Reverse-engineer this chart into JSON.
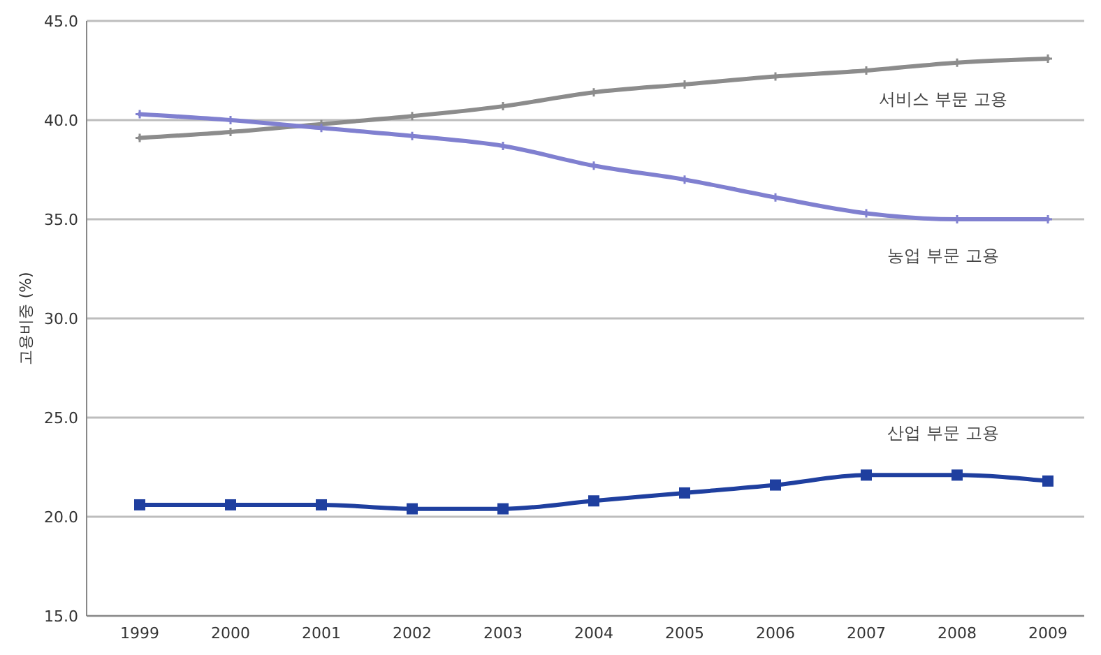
{
  "chart_data": {
    "type": "line",
    "ylabel": "고용비중 (%)",
    "categories": [
      "1999",
      "2000",
      "2001",
      "2002",
      "2003",
      "2004",
      "2005",
      "2006",
      "2007",
      "2008",
      "2009"
    ],
    "ylim": [
      15,
      45
    ],
    "yticks": [
      {
        "value": 15,
        "label": "15.0"
      },
      {
        "value": 20,
        "label": "20.0"
      },
      {
        "value": 25,
        "label": "25.0"
      },
      {
        "value": 30,
        "label": "30.0"
      },
      {
        "value": 35,
        "label": "35.0"
      },
      {
        "value": 40,
        "label": "40.0"
      },
      {
        "value": 45,
        "label": "45.0"
      }
    ],
    "grid": "y",
    "series": [
      {
        "name": "서비스 부문 고용",
        "color": "#8c8c8c",
        "marker": "cross",
        "values": [
          39.1,
          39.4,
          39.8,
          40.2,
          40.7,
          41.4,
          41.8,
          42.2,
          42.5,
          42.9,
          43.1
        ]
      },
      {
        "name": "농업 부문 고용",
        "color": "#8080d0",
        "marker": "cross",
        "values": [
          40.3,
          40.0,
          39.6,
          39.2,
          38.7,
          37.7,
          37.0,
          36.1,
          35.3,
          35.0,
          35.0
        ]
      },
      {
        "name": "산업 부문 고용",
        "color": "#1f3f9f",
        "marker": "square",
        "values": [
          20.6,
          20.6,
          20.6,
          20.4,
          20.4,
          20.8,
          21.2,
          21.6,
          22.1,
          22.1,
          21.8
        ]
      }
    ]
  }
}
